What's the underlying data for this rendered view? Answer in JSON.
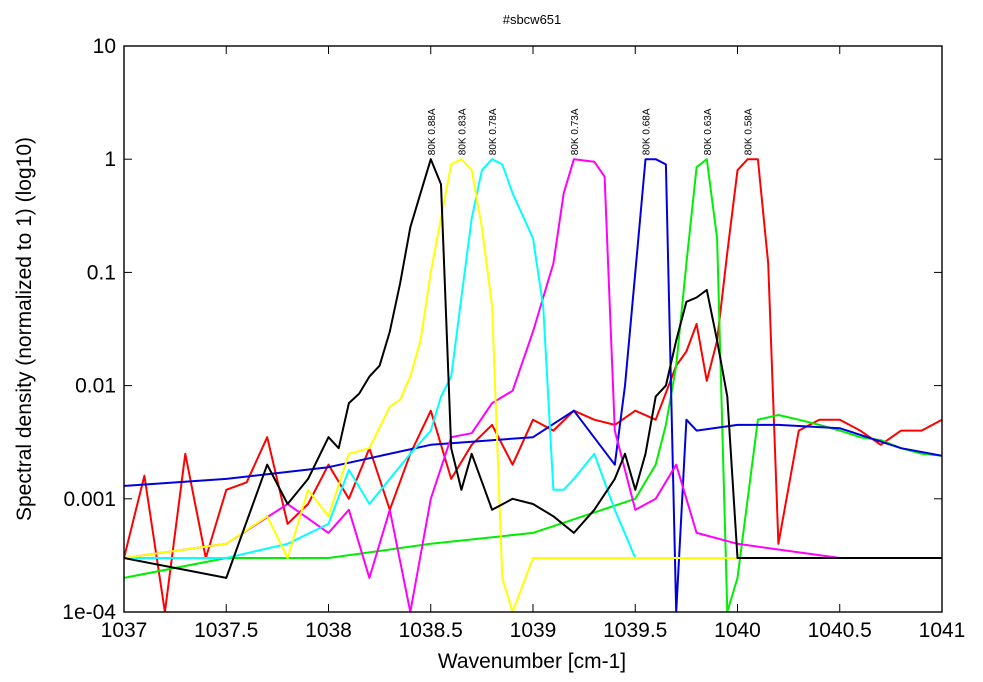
{
  "chart_data": {
    "type": "line",
    "title": "#sbcw651",
    "xlabel": "Wavenumber [cm-1]",
    "ylabel": "Spectral density (normalized to 1) (log10)",
    "xlim": [
      1037,
      1041
    ],
    "ylim": [
      0.0001,
      10
    ],
    "y_scale": "log",
    "grid": false,
    "x_ticks": [
      1037,
      1037.5,
      1038,
      1038.5,
      1039,
      1039.5,
      1040,
      1040.5,
      1041
    ],
    "x_tick_labels": [
      "1037",
      "1037.5",
      "1038",
      "1038.5",
      "1039",
      "1039.5",
      "1040",
      "1040.5",
      "1041"
    ],
    "y_ticks": [
      0.0001,
      0.001,
      0.01,
      0.1,
      1,
      10
    ],
    "y_tick_labels": [
      "1e-04",
      "0.001",
      "0.01",
      "0.1",
      "1",
      "10"
    ],
    "series": [
      {
        "name": "80K 0.58A",
        "color": "#ff0000",
        "x": [
          1037.0,
          1037.1,
          1037.2,
          1037.3,
          1037.4,
          1037.5,
          1037.6,
          1037.7,
          1037.8,
          1037.9,
          1038.0,
          1038.1,
          1038.2,
          1038.3,
          1038.4,
          1038.5,
          1038.6,
          1038.7,
          1038.8,
          1038.9,
          1039.0,
          1039.1,
          1039.2,
          1039.3,
          1039.4,
          1039.5,
          1039.6,
          1039.7,
          1039.75,
          1039.8,
          1039.85,
          1039.9,
          1039.95,
          1040.0,
          1040.05,
          1040.1,
          1040.15,
          1040.2,
          1040.3,
          1040.4,
          1040.5,
          1040.6,
          1040.7,
          1040.8,
          1040.9,
          1041.0
        ],
        "y": [
          0.0003,
          0.0016,
          0.0001,
          0.0025,
          0.0003,
          0.0012,
          0.0014,
          0.0035,
          0.0006,
          0.0009,
          0.002,
          0.001,
          0.0028,
          0.0008,
          0.0025,
          0.006,
          0.0015,
          0.003,
          0.0045,
          0.002,
          0.005,
          0.004,
          0.006,
          0.005,
          0.0045,
          0.006,
          0.005,
          0.015,
          0.02,
          0.035,
          0.011,
          0.025,
          0.15,
          0.8,
          1.0,
          1.0,
          0.12,
          0.0004,
          0.004,
          0.005,
          0.005,
          0.004,
          0.003,
          0.004,
          0.004,
          0.005
        ]
      },
      {
        "name": "80K 0.63A",
        "color": "#00ee00",
        "x": [
          1037.0,
          1037.5,
          1038.0,
          1038.5,
          1039.0,
          1039.5,
          1039.6,
          1039.65,
          1039.7,
          1039.75,
          1039.8,
          1039.85,
          1039.9,
          1039.95,
          1040.0,
          1040.1,
          1040.2,
          1040.3,
          1040.4,
          1040.5,
          1040.6,
          1040.7,
          1040.8,
          1040.9,
          1041.0
        ],
        "y": [
          0.0002,
          0.0003,
          0.0003,
          0.0004,
          0.0005,
          0.001,
          0.002,
          0.0045,
          0.015,
          0.12,
          0.85,
          1.0,
          0.2,
          0.0001,
          0.0002,
          0.005,
          0.0055,
          0.005,
          0.0045,
          0.004,
          0.0035,
          0.0033,
          0.0028,
          0.0025,
          0.0024
        ]
      },
      {
        "name": "80K 0.68A",
        "color": "#0000dd",
        "x": [
          1037.0,
          1037.5,
          1038.0,
          1038.5,
          1039.0,
          1039.2,
          1039.4,
          1039.45,
          1039.5,
          1039.55,
          1039.6,
          1039.65,
          1039.7,
          1039.75,
          1039.8,
          1040.0,
          1040.2,
          1040.5,
          1040.8,
          1041.0
        ],
        "y": [
          0.0013,
          0.0015,
          0.0019,
          0.003,
          0.0035,
          0.006,
          0.002,
          0.01,
          0.1,
          1.0,
          1.0,
          0.9,
          0.0001,
          0.005,
          0.004,
          0.0045,
          0.0045,
          0.0042,
          0.0028,
          0.0024
        ]
      },
      {
        "name": "80K 0.73A",
        "color": "#ff00ff",
        "x": [
          1037.0,
          1037.5,
          1037.8,
          1038.0,
          1038.1,
          1038.2,
          1038.3,
          1038.4,
          1038.5,
          1038.6,
          1038.7,
          1038.8,
          1038.9,
          1039.0,
          1039.1,
          1039.15,
          1039.2,
          1039.3,
          1039.35,
          1039.4,
          1039.5,
          1039.6,
          1039.7,
          1039.8,
          1040.0,
          1040.5,
          1041.0
        ],
        "y": [
          0.0003,
          0.0004,
          0.0009,
          0.0005,
          0.0008,
          0.0002,
          0.0008,
          0.0001,
          0.001,
          0.0035,
          0.0038,
          0.007,
          0.009,
          0.03,
          0.12,
          0.5,
          1.0,
          0.95,
          0.7,
          0.004,
          0.0008,
          0.001,
          0.002,
          0.0005,
          0.0004,
          0.0003,
          0.0003
        ]
      },
      {
        "name": "80K 0.78A",
        "color": "#00ffff",
        "x": [
          1037.0,
          1037.5,
          1037.8,
          1038.0,
          1038.1,
          1038.2,
          1038.3,
          1038.4,
          1038.5,
          1038.55,
          1038.6,
          1038.65,
          1038.7,
          1038.75,
          1038.8,
          1038.85,
          1038.9,
          1039.0,
          1039.05,
          1039.1,
          1039.15,
          1039.2,
          1039.3,
          1039.4,
          1039.5,
          1040.0,
          1040.5,
          1041.0
        ],
        "y": [
          0.0003,
          0.0003,
          0.0004,
          0.0006,
          0.0018,
          0.0009,
          0.0015,
          0.0025,
          0.004,
          0.008,
          0.012,
          0.06,
          0.3,
          0.8,
          1.0,
          0.9,
          0.5,
          0.2,
          0.05,
          0.0012,
          0.0012,
          0.0015,
          0.0025,
          0.0008,
          0.0003,
          0.0003,
          0.0003,
          0.0003
        ]
      },
      {
        "name": "80K 0.83A",
        "color": "#ffff00",
        "x": [
          1037.0,
          1037.5,
          1037.7,
          1037.8,
          1037.9,
          1038.0,
          1038.1,
          1038.2,
          1038.3,
          1038.35,
          1038.4,
          1038.45,
          1038.5,
          1038.55,
          1038.6,
          1038.65,
          1038.7,
          1038.75,
          1038.8,
          1038.85,
          1038.9,
          1039.0,
          1039.5,
          1040.0,
          1041.0
        ],
        "y": [
          0.0003,
          0.0004,
          0.0007,
          0.0003,
          0.0012,
          0.0007,
          0.0025,
          0.0028,
          0.0065,
          0.0075,
          0.012,
          0.025,
          0.1,
          0.3,
          0.9,
          1.0,
          0.8,
          0.25,
          0.05,
          0.0002,
          0.0001,
          0.0003,
          0.0003,
          0.0003,
          0.0003
        ]
      },
      {
        "name": "80K 0.88A",
        "color": "#000000",
        "x": [
          1037.0,
          1037.5,
          1037.7,
          1037.8,
          1037.9,
          1038.0,
          1038.05,
          1038.1,
          1038.15,
          1038.2,
          1038.25,
          1038.3,
          1038.35,
          1038.4,
          1038.45,
          1038.5,
          1038.55,
          1038.6,
          1038.65,
          1038.7,
          1038.8,
          1038.9,
          1039.0,
          1039.1,
          1039.2,
          1039.3,
          1039.4,
          1039.45,
          1039.5,
          1039.55,
          1039.6,
          1039.65,
          1039.7,
          1039.75,
          1039.8,
          1039.85,
          1039.9,
          1039.95,
          1040.0,
          1040.5,
          1041.0
        ],
        "y": [
          0.0003,
          0.0002,
          0.002,
          0.0009,
          0.0015,
          0.0035,
          0.0028,
          0.007,
          0.0085,
          0.012,
          0.015,
          0.03,
          0.08,
          0.25,
          0.5,
          1.0,
          0.6,
          0.0028,
          0.0012,
          0.0025,
          0.0008,
          0.001,
          0.0009,
          0.0007,
          0.0005,
          0.0008,
          0.0015,
          0.0025,
          0.0012,
          0.0025,
          0.008,
          0.01,
          0.025,
          0.055,
          0.06,
          0.07,
          0.025,
          0.008,
          0.0003,
          0.0003,
          0.0003
        ]
      }
    ]
  }
}
